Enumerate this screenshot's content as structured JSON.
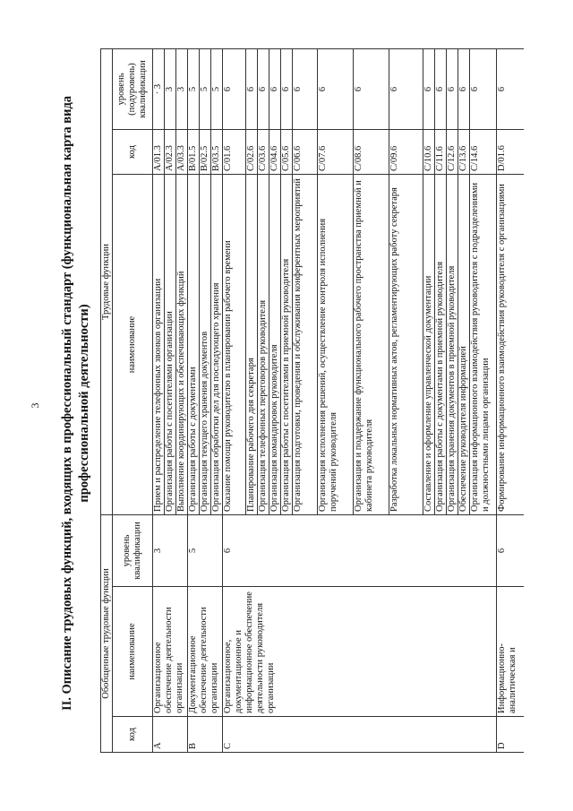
{
  "page_number": "3",
  "title_line1": "II. Описание трудовых функций, входящих в профессиональный стандарт (функциональная карта вида",
  "title_line2": "профессиональной деятельности)",
  "header": {
    "generalized": "Обобщенные трудовые функции",
    "labor": "Трудовые функции",
    "code": "код",
    "name": "наименование",
    "level": "уровень квалификации",
    "code2": "код",
    "name2": "наименование",
    "level2": "уровень (подуровень) квалификации"
  },
  "groups": [
    {
      "code": "A",
      "name": "Организационное обеспечение деятельности организации",
      "level": "3",
      "functions": [
        {
          "name": "Прием и распределение телефонных звонков организации",
          "code": "A/01.3",
          "level": "· 3",
          "h": 12
        },
        {
          "name": "Организация работы с посетителями организации",
          "code": "A/02.3",
          "level": "3",
          "h": 12
        },
        {
          "name": "Выполнение координирующих и обеспечивающих функций",
          "code": "A/03.3",
          "level": "3",
          "h": 12
        }
      ]
    },
    {
      "code": "B",
      "name": "Документационное обеспечение деятельности организации",
      "level": "5",
      "functions": [
        {
          "name": "Организация работы с документами",
          "code": "B/01.5",
          "level": "5",
          "h": 12
        },
        {
          "name": "Организация текущего хранения документов",
          "code": "B/02.5",
          "level": "5",
          "h": 12
        },
        {
          "name": "Организация обработки дел для последующего хранения",
          "code": "B/03.5",
          "level": "5",
          "h": 12
        }
      ]
    },
    {
      "code": "C",
      "name": "Организационное, документационное и информационное обеспечение деятельности руководителя организации",
      "level": "6",
      "functions": [
        {
          "name": "Оказание помощи руководителю в планировании рабочего времени",
          "code": "C/01.6",
          "level": "6",
          "h": 26
        },
        {
          "name": "Планирование рабочего дня секретаря",
          "code": "C/02.6",
          "level": "6",
          "h": 12
        },
        {
          "name": "Организация телефонных переговоров руководителя",
          "code": "C/03.6",
          "level": "6",
          "h": 12
        },
        {
          "name": "Организация командировок руководителя",
          "code": "C/04.6",
          "level": "6",
          "h": 12
        },
        {
          "name": "Организация работы с посетителями в приемной руководителя",
          "code": "C/05.6",
          "level": "6",
          "h": 12
        },
        {
          "name": "Организация подготовки, проведения и обслуживания конферентных мероприятий",
          "code": "C/06.6",
          "level": "6",
          "h": 28
        },
        {
          "name": "Организация исполнения решений, осуществление контроля исполнения поручений руководителя",
          "code": "C/07.6",
          "level": "6",
          "h": 40
        },
        {
          "name": "Организация и поддержание функционального рабочего пространства приемной и кабинета руководителя",
          "code": "C/08.6",
          "level": "6",
          "h": 40
        },
        {
          "name": "Разработка локальных нормативных актов, регламентирующих работу секретаря",
          "code": "C/09.6",
          "level": "6",
          "h": 38
        },
        {
          "name": "Составление и оформление управленческой документации",
          "code": "C/10.6",
          "level": "6",
          "h": 12
        },
        {
          "name": "Организация работы с документами в приемной руководителя",
          "code": "C/11.6",
          "level": "6",
          "h": 12
        },
        {
          "name": "Организация хранения документов в приемной руководителя",
          "code": "C/12.6",
          "level": "6",
          "h": 12
        },
        {
          "name": "Обеспечение руководителя информацией",
          "code": "C/13.6",
          "level": "6",
          "h": 12
        },
        {
          "name": "Организация информационного взаимодействия руководителя с подразделениями и должностными лицами организации",
          "code": "C/14.6",
          "level": "6",
          "h": 30
        }
      ]
    },
    {
      "code": "D",
      "name": "Информационно-аналитическая и",
      "level": "6",
      "functions": [
        {
          "name": "Формирование информационного взаимодействия руководителя с организациями",
          "code": "D/01.6",
          "level": "6",
          "h": 40
        }
      ]
    }
  ]
}
